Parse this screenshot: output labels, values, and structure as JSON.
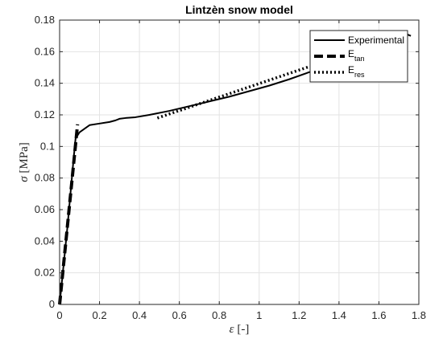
{
  "chart_data": {
    "type": "line",
    "title": "Lintzèn snow model",
    "xlabel": {
      "symbol": "ε",
      "unit": "[-]"
    },
    "ylabel": {
      "symbol": "σ",
      "unit": "[MPa]"
    },
    "xlim": [
      0,
      1.8
    ],
    "ylim": [
      0,
      0.18
    ],
    "xticks": [
      0,
      0.2,
      0.4,
      0.6,
      0.8,
      1,
      1.2,
      1.4,
      1.6,
      1.8
    ],
    "yticks": [
      0,
      0.02,
      0.04,
      0.06,
      0.08,
      0.1,
      0.12,
      0.14,
      0.16,
      0.18
    ],
    "xtick_labels": [
      "0",
      "0.2",
      "0.4",
      "0.6",
      "0.8",
      "1",
      "1.2",
      "1.4",
      "1.6",
      "1.8"
    ],
    "ytick_labels": [
      "0",
      "0.02",
      "0.04",
      "0.06",
      "0.08",
      "0.1",
      "0.12",
      "0.14",
      "0.16",
      "0.18"
    ],
    "grid": true,
    "legend_position": "top-right",
    "series": [
      {
        "name": "Experimental",
        "style": "solid",
        "color": "#000000",
        "x": [
          0,
          0.02,
          0.04,
          0.06,
          0.07,
          0.08,
          0.1,
          0.15,
          0.2,
          0.25,
          0.28,
          0.3,
          0.33,
          0.38,
          0.45,
          0.55,
          0.65,
          0.75,
          0.85,
          0.95,
          1.05,
          1.15,
          1.25,
          1.35,
          1.45,
          1.55,
          1.65,
          1.7,
          1.73,
          1.76
        ],
        "y": [
          0,
          0.025,
          0.05,
          0.078,
          0.092,
          0.105,
          0.109,
          0.1135,
          0.1145,
          0.1155,
          0.1165,
          0.1175,
          0.118,
          0.1185,
          0.12,
          0.1225,
          0.1255,
          0.1285,
          0.1315,
          0.135,
          0.1385,
          0.1425,
          0.147,
          0.1515,
          0.156,
          0.1605,
          0.1655,
          0.169,
          0.1715,
          0.17
        ]
      },
      {
        "name": "E_tan",
        "label_main": "E",
        "label_sub": "tan",
        "style": "dashed",
        "color": "#000000",
        "x": [
          0,
          0.09
        ],
        "y": [
          0,
          0.114
        ]
      },
      {
        "name": "E_res",
        "label_main": "E",
        "label_sub": "res",
        "style": "dotted",
        "color": "#000000",
        "x": [
          0.49,
          1.25
        ],
        "y": [
          0.118,
          0.1505
        ]
      }
    ]
  }
}
